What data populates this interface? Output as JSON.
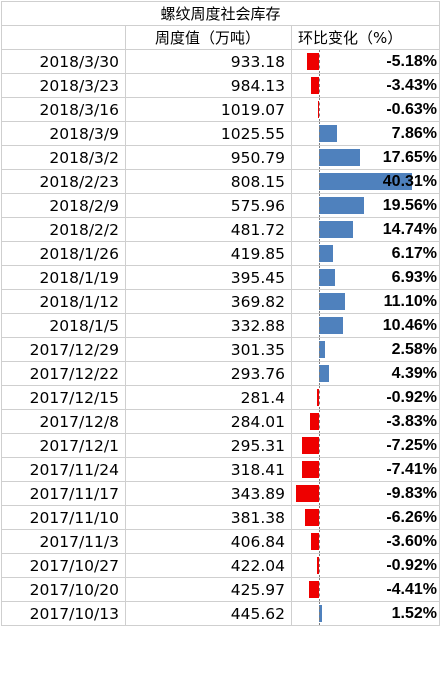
{
  "chart_data": {
    "type": "table",
    "title": "螺纹周度社会库存",
    "columns": [
      "",
      "周度值（万吨）",
      "环比变化（%）"
    ],
    "colors": {
      "positive": "#4f81bd",
      "negative": "#ee0000"
    },
    "rows": [
      {
        "date": "2018/3/30",
        "value": "933.18",
        "change": -5.18,
        "change_label": "-5.18%"
      },
      {
        "date": "2018/3/23",
        "value": "984.13",
        "change": -3.43,
        "change_label": "-3.43%"
      },
      {
        "date": "2018/3/16",
        "value": "1019.07",
        "change": -0.63,
        "change_label": "-0.63%"
      },
      {
        "date": "2018/3/9",
        "value": "1025.55",
        "change": 7.86,
        "change_label": "7.86%"
      },
      {
        "date": "2018/3/2",
        "value": "950.79",
        "change": 17.65,
        "change_label": "17.65%"
      },
      {
        "date": "2018/2/23",
        "value": "808.15",
        "change": 40.31,
        "change_label": "40.31%"
      },
      {
        "date": "2018/2/9",
        "value": "575.96",
        "change": 19.56,
        "change_label": "19.56%"
      },
      {
        "date": "2018/2/2",
        "value": "481.72",
        "change": 14.74,
        "change_label": "14.74%"
      },
      {
        "date": "2018/1/26",
        "value": "419.85",
        "change": 6.17,
        "change_label": "6.17%"
      },
      {
        "date": "2018/1/19",
        "value": "395.45",
        "change": 6.93,
        "change_label": "6.93%"
      },
      {
        "date": "2018/1/12",
        "value": "369.82",
        "change": 11.1,
        "change_label": "11.10%"
      },
      {
        "date": "2018/1/5",
        "value": "332.88",
        "change": 10.46,
        "change_label": "10.46%"
      },
      {
        "date": "2017/12/29",
        "value": "301.35",
        "change": 2.58,
        "change_label": "2.58%"
      },
      {
        "date": "2017/12/22",
        "value": "293.76",
        "change": 4.39,
        "change_label": "4.39%"
      },
      {
        "date": "2017/12/15",
        "value": "281.4",
        "change": -0.92,
        "change_label": "-0.92%"
      },
      {
        "date": "2017/12/8",
        "value": "284.01",
        "change": -3.83,
        "change_label": "-3.83%"
      },
      {
        "date": "2017/12/1",
        "value": "295.31",
        "change": -7.25,
        "change_label": "-7.25%"
      },
      {
        "date": "2017/11/24",
        "value": "318.41",
        "change": -7.41,
        "change_label": "-7.41%"
      },
      {
        "date": "2017/11/17",
        "value": "343.89",
        "change": -9.83,
        "change_label": "-9.83%"
      },
      {
        "date": "2017/11/10",
        "value": "381.38",
        "change": -6.26,
        "change_label": "-6.26%"
      },
      {
        "date": "2017/11/3",
        "value": "406.84",
        "change": -3.6,
        "change_label": "-3.60%"
      },
      {
        "date": "2017/10/27",
        "value": "422.04",
        "change": -0.92,
        "change_label": "-0.92%"
      },
      {
        "date": "2017/10/20",
        "value": "425.97",
        "change": -4.41,
        "change_label": "-4.41%"
      },
      {
        "date": "2017/10/13",
        "value": "445.62",
        "change": 1.52,
        "change_label": "1.52%"
      }
    ]
  }
}
